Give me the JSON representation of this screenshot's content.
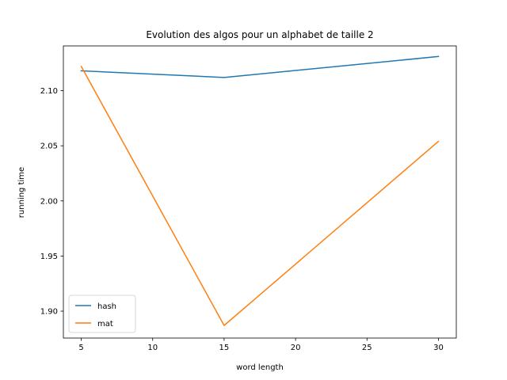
{
  "chart_data": {
    "type": "line",
    "title": "Evolution des algos pour un alphabet de taille 2",
    "xlabel": "word length",
    "ylabel": "running time",
    "x": [
      5,
      15,
      30
    ],
    "xlim": [
      3.75,
      31.25
    ],
    "ylim": [
      1.8756,
      2.1406
    ],
    "xticks": [
      5,
      10,
      15,
      20,
      25,
      30
    ],
    "xtick_labels": [
      "5",
      "10",
      "15",
      "20",
      "25",
      "30"
    ],
    "yticks": [
      1.9,
      1.95,
      2.0,
      2.05,
      2.1
    ],
    "ytick_labels": [
      "1.90",
      "1.95",
      "2.00",
      "2.05",
      "2.10"
    ],
    "grid": false,
    "legend_position": "lower-left",
    "series": [
      {
        "name": "hash",
        "values": [
          2.118,
          2.112,
          2.131
        ],
        "color": "#1f77b4"
      },
      {
        "name": "mat",
        "values": [
          2.122,
          1.887,
          2.054
        ],
        "color": "#ff7f0e"
      }
    ]
  }
}
